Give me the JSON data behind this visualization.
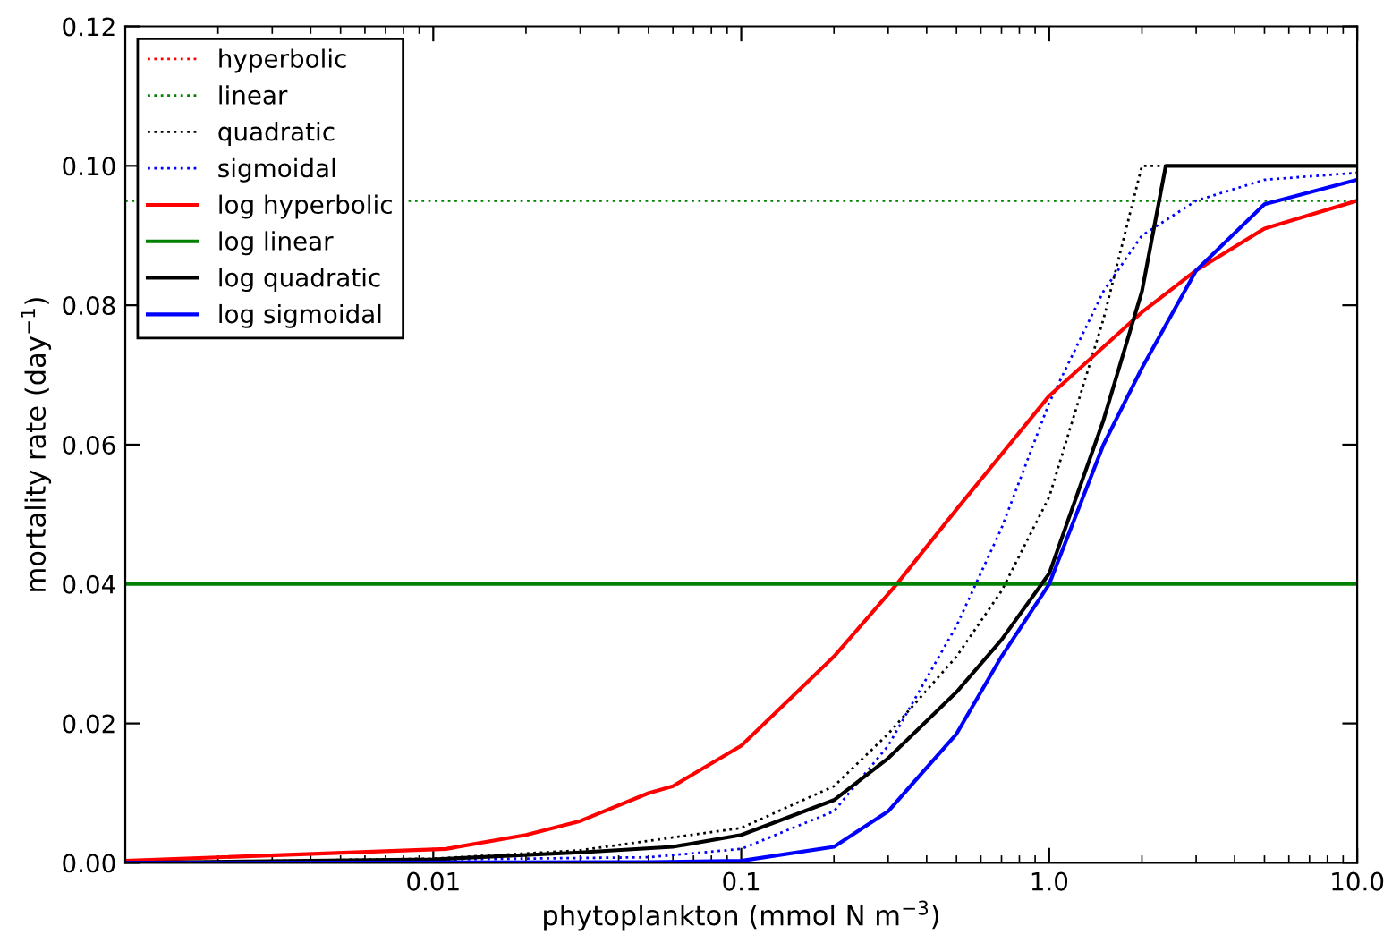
{
  "chart_data": {
    "type": "line",
    "xlabel": "phytoplankton (mmol N m$^{−3}$)",
    "ylabel": "mortality rate (day$^{−1}$)",
    "log": "x",
    "xlim": [
      0.001,
      10
    ],
    "ylim": [
      0,
      0.12
    ],
    "xticks": [
      {
        "value": 0.01,
        "label": "0.01"
      },
      {
        "value": 0.1,
        "label": "0.1"
      },
      {
        "value": 1,
        "label": "1.0"
      },
      {
        "value": 10,
        "label": "10.0"
      }
    ],
    "yticks": [
      {
        "value": 0,
        "label": "0.00"
      },
      {
        "value": 0.02,
        "label": "0.02"
      },
      {
        "value": 0.04,
        "label": "0.04"
      },
      {
        "value": 0.06,
        "label": "0.06"
      },
      {
        "value": 0.08,
        "label": "0.08"
      },
      {
        "value": 0.1,
        "label": "0.10"
      },
      {
        "value": 0.12,
        "label": "0.12"
      }
    ],
    "grid": false,
    "legend": "top left",
    "marker": "none",
    "series": [
      {
        "name": "hyperbolic",
        "color": "#ff0000",
        "line_style": "dotted"
      },
      {
        "name": "linear",
        "color": "#008000",
        "line_style": "dotted",
        "x": [
          0.001,
          10
        ],
        "values": [
          0.095,
          0.095
        ]
      },
      {
        "name": "quadratic",
        "color": "#000000",
        "line_style": "dotted",
        "x": [
          0.001,
          0.01,
          0.03,
          0.1,
          0.2,
          0.3,
          0.5,
          0.7,
          1,
          1.5,
          2,
          10
        ],
        "values": [
          0,
          0.0006,
          0.0018,
          0.005,
          0.011,
          0.0185,
          0.0296,
          0.039,
          0.0525,
          0.078,
          0.1,
          0.1
        ]
      },
      {
        "name": "sigmoidal",
        "color": "#0000ff",
        "line_style": "dotted",
        "x": [
          0.001,
          0.05,
          0.1,
          0.2,
          0.3,
          0.5,
          0.7,
          1,
          1.5,
          2,
          3,
          5,
          10
        ],
        "values": [
          0,
          0.0008,
          0.002,
          0.0074,
          0.0168,
          0.034,
          0.048,
          0.066,
          0.082,
          0.09,
          0.095,
          0.098,
          0.099
        ]
      },
      {
        "name": "log hyperbolic",
        "color": "#ff0000",
        "line_style": "solid",
        "x": [
          0.001,
          0.011,
          0.02,
          0.03,
          0.05,
          0.06,
          0.1,
          0.2,
          0.32,
          0.5,
          1,
          2,
          3,
          5,
          10
        ],
        "values": [
          0.0003,
          0.002,
          0.004,
          0.006,
          0.01,
          0.011,
          0.0168,
          0.0296,
          0.04,
          0.0507,
          0.067,
          0.079,
          0.085,
          0.091,
          0.095
        ]
      },
      {
        "name": "log linear",
        "color": "#008000",
        "line_style": "solid",
        "x": [
          0.001,
          10
        ],
        "values": [
          0.04,
          0.04
        ]
      },
      {
        "name": "log quadratic",
        "color": "#000000",
        "line_style": "solid",
        "x": [
          0.001,
          0.01,
          0.03,
          0.06,
          0.1,
          0.2,
          0.3,
          0.5,
          0.7,
          1,
          1.5,
          2,
          2.39,
          10
        ],
        "values": [
          0,
          0.0005,
          0.0015,
          0.0023,
          0.004,
          0.009,
          0.015,
          0.0245,
          0.032,
          0.0415,
          0.0635,
          0.082,
          0.1,
          0.1
        ]
      },
      {
        "name": "log sigmoidal",
        "color": "#0000ff",
        "line_style": "solid",
        "x": [
          0.001,
          0.05,
          0.1,
          0.2,
          0.3,
          0.5,
          0.7,
          1,
          1.5,
          2,
          3,
          5,
          10
        ],
        "values": [
          0,
          0.0001,
          0.0003,
          0.0023,
          0.0074,
          0.0185,
          0.0296,
          0.04,
          0.06,
          0.071,
          0.085,
          0.0945,
          0.098
        ]
      }
    ]
  }
}
